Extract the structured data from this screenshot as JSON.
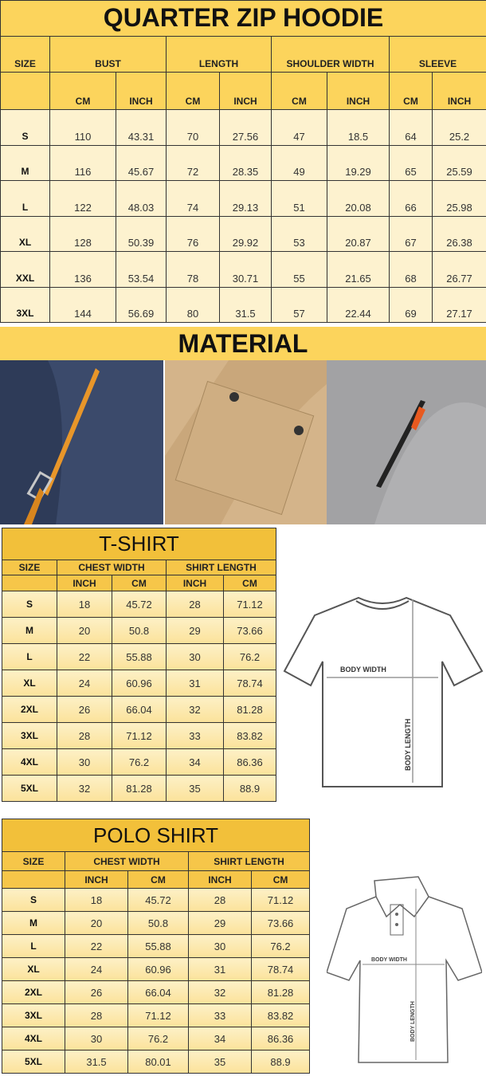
{
  "hoodie": {
    "title": "QUARTER ZIP HOODIE",
    "size_label": "SIZE",
    "groups": [
      "BUST",
      "LENGTH",
      "SHOULDER WIDTH",
      "SLEEVE"
    ],
    "units": [
      "CM",
      "INCH",
      "CM",
      "INCH",
      "CM",
      "INCH",
      "CM",
      "INCH"
    ],
    "rows": [
      [
        "S",
        "110",
        "43.31",
        "70",
        "27.56",
        "47",
        "18.5",
        "64",
        "25.2"
      ],
      [
        "M",
        "116",
        "45.67",
        "72",
        "28.35",
        "49",
        "19.29",
        "65",
        "25.59"
      ],
      [
        "L",
        "122",
        "48.03",
        "74",
        "29.13",
        "51",
        "20.08",
        "66",
        "25.98"
      ],
      [
        "XL",
        "128",
        "50.39",
        "76",
        "29.92",
        "53",
        "20.87",
        "67",
        "26.38"
      ],
      [
        "XXL",
        "136",
        "53.54",
        "78",
        "30.71",
        "55",
        "21.65",
        "68",
        "26.77"
      ],
      [
        "3XL",
        "144",
        "56.69",
        "80",
        "31.5",
        "57",
        "22.44",
        "69",
        "27.17"
      ]
    ]
  },
  "material": {
    "title": "MATERIAL",
    "photos": [
      "navy-fleece-pocket-orange-zip",
      "beige-cargo-pocket",
      "grey-sleeve-zip-pocket"
    ]
  },
  "tshirt": {
    "title": "T-SHIRT",
    "size_label": "SIZE",
    "groups": [
      "CHEST WIDTH",
      "SHIRT LENGTH"
    ],
    "units": [
      "INCH",
      "CM",
      "INCH",
      "CM"
    ],
    "rows": [
      [
        "S",
        "18",
        "45.72",
        "28",
        "71.12"
      ],
      [
        "M",
        "20",
        "50.8",
        "29",
        "73.66"
      ],
      [
        "L",
        "22",
        "55.88",
        "30",
        "76.2"
      ],
      [
        "XL",
        "24",
        "60.96",
        "31",
        "78.74"
      ],
      [
        "2XL",
        "26",
        "66.04",
        "32",
        "81.28"
      ],
      [
        "3XL",
        "28",
        "71.12",
        "33",
        "83.82"
      ],
      [
        "4XL",
        "30",
        "76.2",
        "34",
        "86.36"
      ],
      [
        "5XL",
        "32",
        "81.28",
        "35",
        "88.9"
      ]
    ],
    "diagram": {
      "width_label": "BODY WIDTH",
      "length_label": "BODY LENGTH"
    }
  },
  "polo": {
    "title": "POLO SHIRT",
    "size_label": "SIZE",
    "groups": [
      "CHEST WIDTH",
      "SHIRT LENGTH"
    ],
    "units": [
      "INCH",
      "CM",
      "INCH",
      "CM"
    ],
    "rows": [
      [
        "S",
        "18",
        "45.72",
        "28",
        "71.12"
      ],
      [
        "M",
        "20",
        "50.8",
        "29",
        "73.66"
      ],
      [
        "L",
        "22",
        "55.88",
        "30",
        "76.2"
      ],
      [
        "XL",
        "24",
        "60.96",
        "31",
        "78.74"
      ],
      [
        "2XL",
        "26",
        "66.04",
        "32",
        "81.28"
      ],
      [
        "3XL",
        "28",
        "71.12",
        "33",
        "83.82"
      ],
      [
        "4XL",
        "30",
        "76.2",
        "34",
        "86.36"
      ],
      [
        "5XL",
        "31.5",
        "80.01",
        "35",
        "88.9"
      ]
    ],
    "diagram": {
      "width_label": "BODY WIDTH",
      "length_label": "BODY LENGTH"
    }
  },
  "colors": {
    "header_yellow": "#fcd45c",
    "title_gold": "#f2c03a",
    "cell_cream": "#fdf2cf"
  }
}
